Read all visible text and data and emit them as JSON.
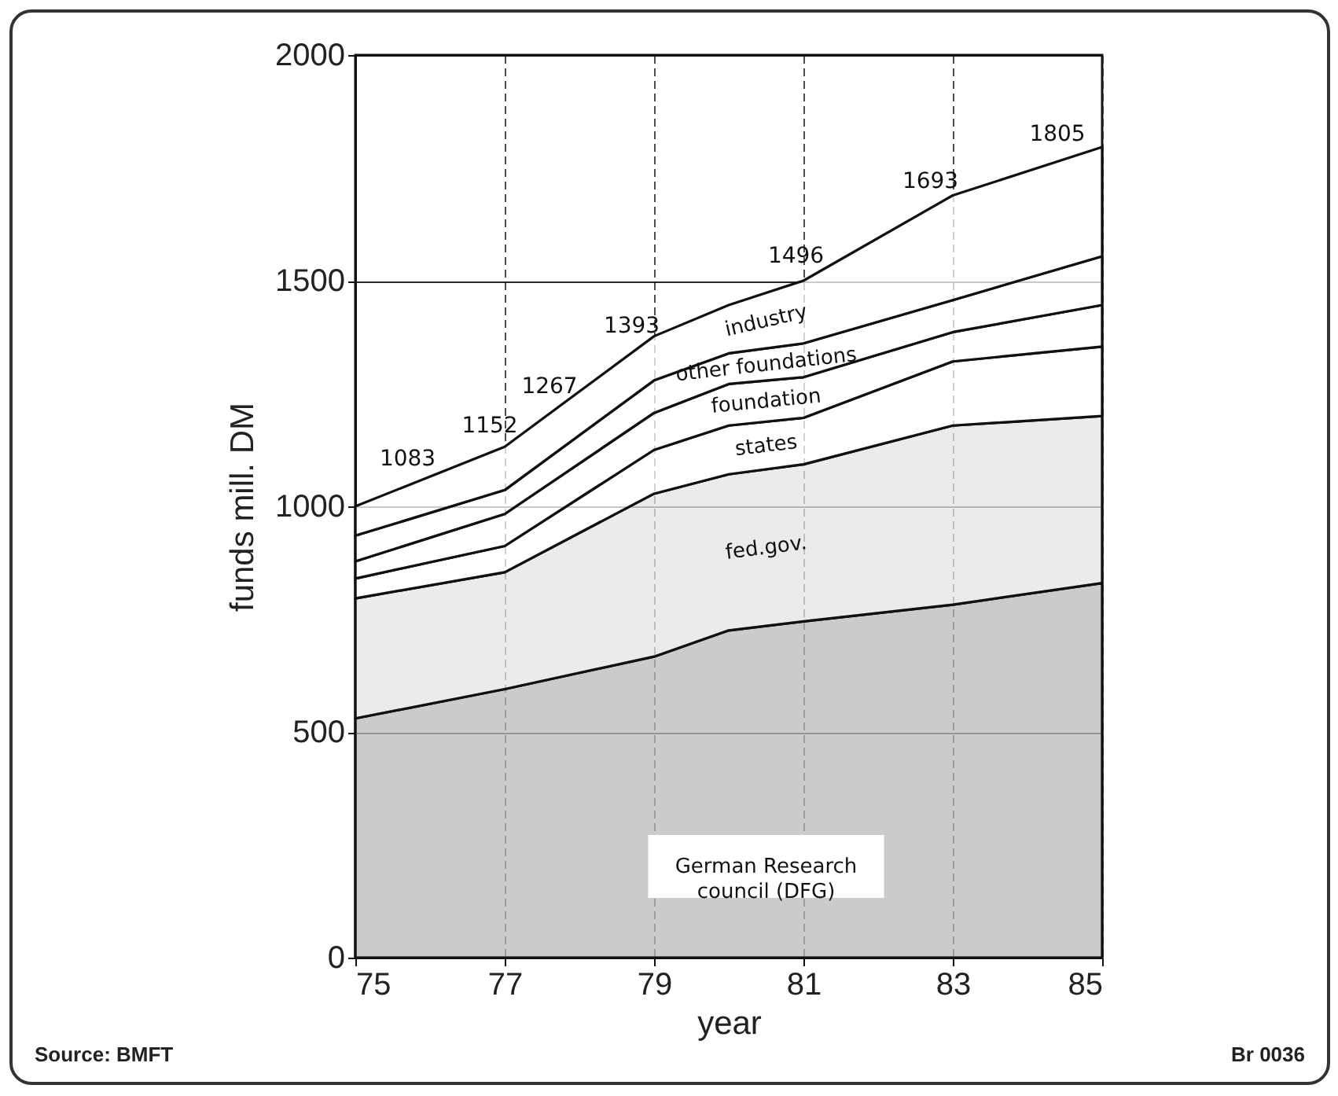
{
  "chart_data": {
    "type": "area",
    "stacked": true,
    "xlabel": "year",
    "ylabel": "funds mill. DM",
    "x": [
      75,
      77,
      79,
      80,
      81,
      83,
      85
    ],
    "series": [
      {
        "name": "German Research council (DFG)",
        "color": "#b9b9b9",
        "values": [
          530,
          595,
          667,
          725,
          745,
          782,
          830
        ]
      },
      {
        "name": "fed.gov.",
        "color": "#e4e4e4",
        "values": [
          266,
          259,
          361,
          346,
          348,
          397,
          370
        ]
      },
      {
        "name": "states",
        "color": "#ffffff",
        "values": [
          44,
          58,
          97,
          108,
          103,
          142,
          154
        ]
      },
      {
        "name": "foundation",
        "color": "#ffffff",
        "values": [
          38,
          71,
          82,
          92,
          90,
          65,
          92
        ]
      },
      {
        "name": "other foundations",
        "color": "#ffffff",
        "values": [
          57,
          53,
          72,
          68,
          75,
          71,
          108
        ]
      },
      {
        "name": "industry",
        "color": "#ffffff",
        "values": [
          65,
          96,
          98,
          107,
          139,
          232,
          242
        ]
      }
    ],
    "xlim": [
      75,
      85
    ],
    "xticks": [
      75,
      77,
      79,
      81,
      83,
      85
    ],
    "ylim": [
      0,
      2000
    ],
    "yticks": [
      0,
      500,
      1000,
      1500,
      2000
    ],
    "grid": true,
    "annotations": [
      {
        "text": "1083",
        "x": 75.7,
        "y": 1046
      },
      {
        "text": "1152",
        "x": 76.8,
        "y": 1119
      },
      {
        "text": "1267",
        "x": 77.6,
        "y": 1206
      },
      {
        "text": "1393",
        "x": 78.7,
        "y": 1340
      },
      {
        "text": "1496",
        "x": 80.9,
        "y": 1495
      },
      {
        "text": "1693",
        "x": 82.7,
        "y": 1661
      },
      {
        "text": "1805",
        "x": 84.4,
        "y": 1764
      },
      "Source: BMFT",
      "Br 0036"
    ]
  }
}
